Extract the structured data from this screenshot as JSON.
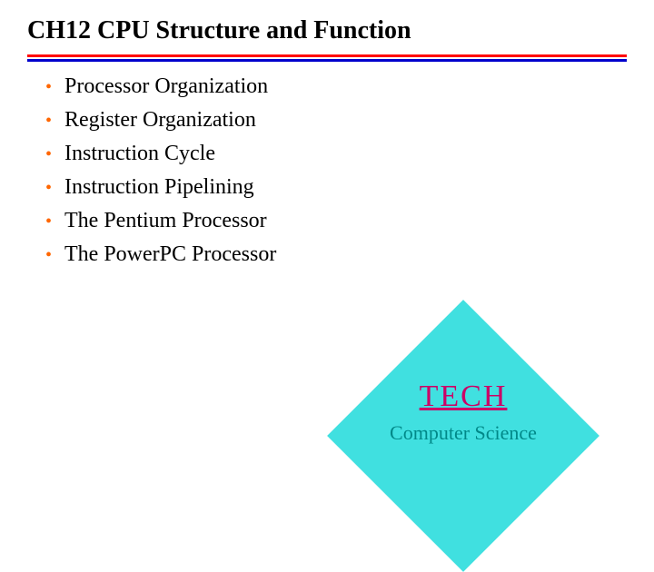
{
  "title": {
    "text": "CH12 CPU Structure and Function",
    "fontsize": 28,
    "color": "#000000"
  },
  "divider": {
    "color_top": "#ff0000",
    "color_bottom": "#0000cc"
  },
  "bullets": {
    "items": [
      "Processor Organization",
      "Register Organization",
      "Instruction Cycle",
      "Instruction Pipelining",
      "The Pentium Processor",
      "The PowerPC Processor"
    ],
    "bullet_color": "#ff6600",
    "text_color": "#000000",
    "fontsize": 24
  },
  "badge": {
    "diamond_color": "#40e0e0",
    "tech_text": "TECH ",
    "tech_color": "#cc0066",
    "tech_fontsize": 34,
    "cs_text": "Computer Science",
    "cs_color": "#008888",
    "cs_fontsize": 22
  },
  "background_color": "#ffffff"
}
